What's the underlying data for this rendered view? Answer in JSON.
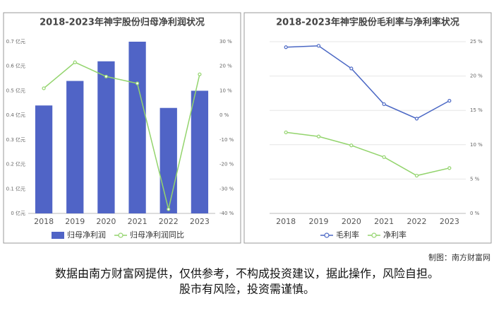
{
  "chart_data": [
    {
      "type": "bar",
      "title": "2018-2023年神宇股份归母净利润状况",
      "categories": [
        "2018",
        "2019",
        "2020",
        "2021",
        "2022",
        "2023"
      ],
      "series": [
        {
          "name": "归母净利润",
          "type": "bar",
          "color": "#5064c6",
          "values": [
            0.44,
            0.54,
            0.62,
            0.7,
            0.43,
            0.5
          ]
        },
        {
          "name": "归母净利润同比",
          "type": "line",
          "axis": "y2",
          "color": "#93d46d",
          "values": [
            11,
            21.6,
            15.8,
            13,
            -38.3,
            16.7
          ]
        }
      ],
      "ylim": [
        0,
        0.7
      ],
      "yticks": [
        {
          "value": 0,
          "label": "0 亿元"
        },
        {
          "value": 0.1,
          "label": "0.1 亿元"
        },
        {
          "value": 0.2,
          "label": "0.2 亿元"
        },
        {
          "value": 0.3,
          "label": "0.3 亿元"
        },
        {
          "value": 0.4,
          "label": "0.4 亿元"
        },
        {
          "value": 0.5,
          "label": "0.5 亿元"
        },
        {
          "value": 0.6,
          "label": "0.6 亿元"
        },
        {
          "value": 0.7,
          "label": "0.7 亿元"
        }
      ],
      "y2lim": [
        -40,
        30
      ],
      "y2ticks": [
        {
          "value": -40,
          "label": "-40 %"
        },
        {
          "value": -30,
          "label": "-30 %"
        },
        {
          "value": -20,
          "label": "-20 %"
        },
        {
          "value": -10,
          "label": "-10 %"
        },
        {
          "value": 0,
          "label": "0 %"
        },
        {
          "value": 10,
          "label": "10 %"
        },
        {
          "value": 20,
          "label": "20 %"
        },
        {
          "value": 30,
          "label": "30 %"
        }
      ],
      "grid": false
    },
    {
      "type": "line",
      "title": "2018-2023年神宇股份毛利率与净利率状况",
      "categories": [
        "2018",
        "2019",
        "2020",
        "2021",
        "2022",
        "2023"
      ],
      "series": [
        {
          "name": "毛利率",
          "color": "#4a67c4",
          "values": [
            24.2,
            24.4,
            21.1,
            15.9,
            13.8,
            16.4
          ]
        },
        {
          "name": "净利率",
          "color": "#93d46d",
          "values": [
            11.8,
            11.2,
            9.9,
            8.2,
            5.5,
            6.6
          ]
        }
      ],
      "ylim": [
        0,
        25
      ],
      "yticks": [
        {
          "value": 0,
          "label": "0 %"
        },
        {
          "value": 5,
          "label": "5 %"
        },
        {
          "value": 10,
          "label": "10 %"
        },
        {
          "value": 15,
          "label": "15 %"
        },
        {
          "value": 20,
          "label": "20 %"
        },
        {
          "value": 25,
          "label": "25 %"
        }
      ],
      "y_axis_side": "right",
      "grid": true
    }
  ],
  "credit": "制图：南方财富网",
  "notes": [
    "数据由南方财富网提供，仅供参考，不构成投资建议，据此操作，风险自担。",
    "股市有风险，投资需谨慎。"
  ]
}
